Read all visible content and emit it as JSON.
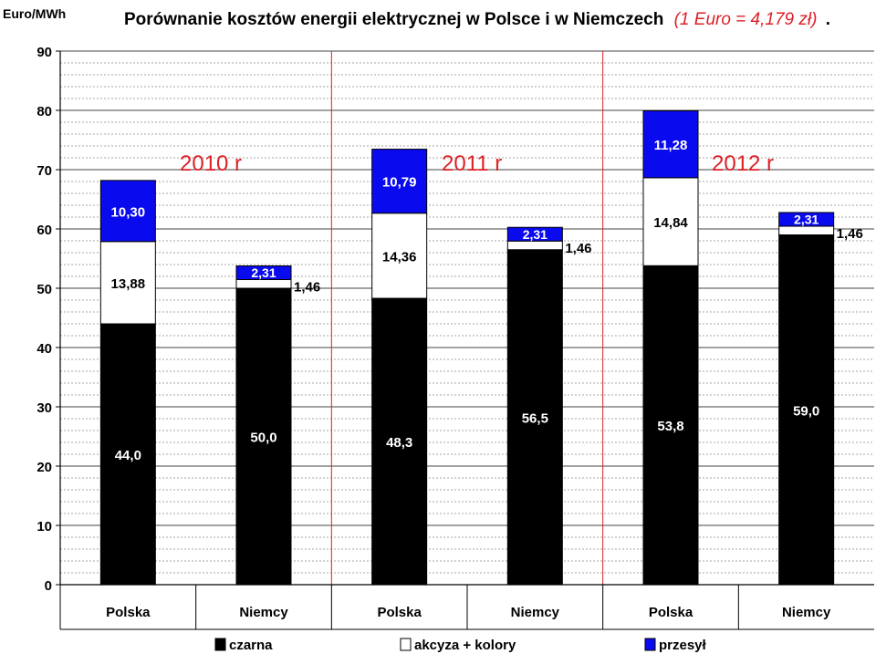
{
  "chart_data": {
    "type": "bar",
    "stacked": true,
    "title_main": "Porównanie kosztów energii elektrycznej w Polsce i w Niemczech",
    "title_note": "(1 Euro = 4,179 zł)",
    "title_dot": ".",
    "ylabel": "Euro/MWh",
    "ylim": [
      0,
      90
    ],
    "yticks": [
      "0",
      "10",
      "20",
      "30",
      "40",
      "50",
      "60",
      "70",
      "80",
      "90"
    ],
    "categories": [
      "Polska",
      "Niemcy",
      "Polska",
      "Niemcy",
      "Polska",
      "Niemcy"
    ],
    "groups": [
      "2010 r",
      "2011 r",
      "2012 r"
    ],
    "series": [
      {
        "name": "czarna",
        "color": "#000000",
        "values": [
          44.0,
          50.0,
          48.3,
          56.5,
          53.8,
          59.0
        ],
        "labels": [
          "44,0",
          "50,0",
          "48,3",
          "56,5",
          "53,8",
          "59,0"
        ]
      },
      {
        "name": "akcyza + kolory",
        "color": "#ffffff",
        "values": [
          13.88,
          1.46,
          14.36,
          1.46,
          14.84,
          1.46
        ],
        "labels": [
          "13,88",
          "1,46",
          "14,36",
          "1,46",
          "14,84",
          "1,46"
        ]
      },
      {
        "name": "przesył",
        "color": "#0a0aee",
        "values": [
          10.3,
          2.31,
          10.79,
          2.31,
          11.28,
          2.31
        ],
        "labels": [
          "10,30",
          "2,31",
          "10,79",
          "2,31",
          "11,28",
          "2,31"
        ]
      }
    ],
    "grid": true,
    "legend": "bottom",
    "accent_color": "#dd1f26"
  }
}
